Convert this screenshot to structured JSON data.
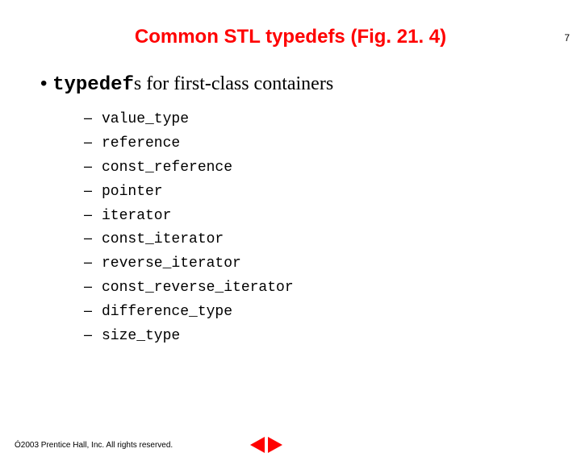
{
  "page_number": "7",
  "title": {
    "text": "Common STL typedefs (Fig. 21. 4)",
    "color": "#ff0000"
  },
  "bullet": {
    "marker": "•",
    "mono_part": "typedef",
    "serif_part": "s for first-class containers"
  },
  "sublist": {
    "dash": "–",
    "items": [
      "value_type",
      "reference",
      "const_reference",
      "pointer",
      "iterator",
      "const_iterator",
      "reverse_iterator",
      "const_reverse_iterator",
      "difference_type",
      "size_type"
    ]
  },
  "footer": {
    "copyright_symbol": "Ó",
    "text": " 2003 Prentice Hall, Inc. All rights reserved."
  },
  "nav": {
    "color": "#ff0000"
  }
}
